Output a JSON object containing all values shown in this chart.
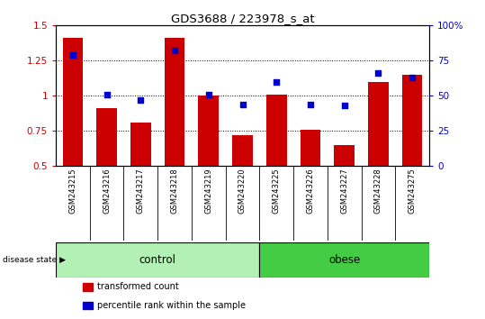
{
  "title": "GDS3688 / 223978_s_at",
  "samples": [
    "GSM243215",
    "GSM243216",
    "GSM243217",
    "GSM243218",
    "GSM243219",
    "GSM243220",
    "GSM243225",
    "GSM243226",
    "GSM243227",
    "GSM243228",
    "GSM243275"
  ],
  "transformed_count": [
    1.41,
    0.91,
    0.81,
    1.41,
    1.0,
    0.72,
    1.01,
    0.76,
    0.65,
    1.1,
    1.15
  ],
  "percentile_rank_pct": [
    79,
    51,
    47,
    82,
    51,
    44,
    60,
    44,
    43,
    66,
    63
  ],
  "bar_color": "#cc0000",
  "dot_color": "#0000cc",
  "ylim_left": [
    0.5,
    1.5
  ],
  "ylim_right": [
    0,
    100
  ],
  "yticks_left": [
    0.5,
    0.75,
    1.0,
    1.25,
    1.5
  ],
  "yticks_right": [
    0,
    25,
    50,
    75,
    100
  ],
  "ytick_labels_left": [
    "0.5",
    "0.75",
    "1",
    "1.25",
    "1.5"
  ],
  "ytick_labels_right": [
    "0",
    "25",
    "50",
    "75",
    "100%"
  ],
  "groups": [
    {
      "label": "control",
      "start": 0,
      "end": 5,
      "color": "#b3f0b3"
    },
    {
      "label": "obese",
      "start": 6,
      "end": 10,
      "color": "#44cc44"
    }
  ],
  "group_label_prefix": "disease state",
  "legend": [
    {
      "label": "transformed count",
      "color": "#cc0000"
    },
    {
      "label": "percentile rank within the sample",
      "color": "#0000cc"
    }
  ],
  "bar_bottom": 0.5,
  "bar_width": 0.6,
  "grid_linestyle": ":",
  "grid_color": "#000000",
  "tick_label_area_color": "#c8c8c8",
  "dotsize": 22,
  "fig_width": 5.39,
  "fig_height": 3.54,
  "dpi": 100
}
